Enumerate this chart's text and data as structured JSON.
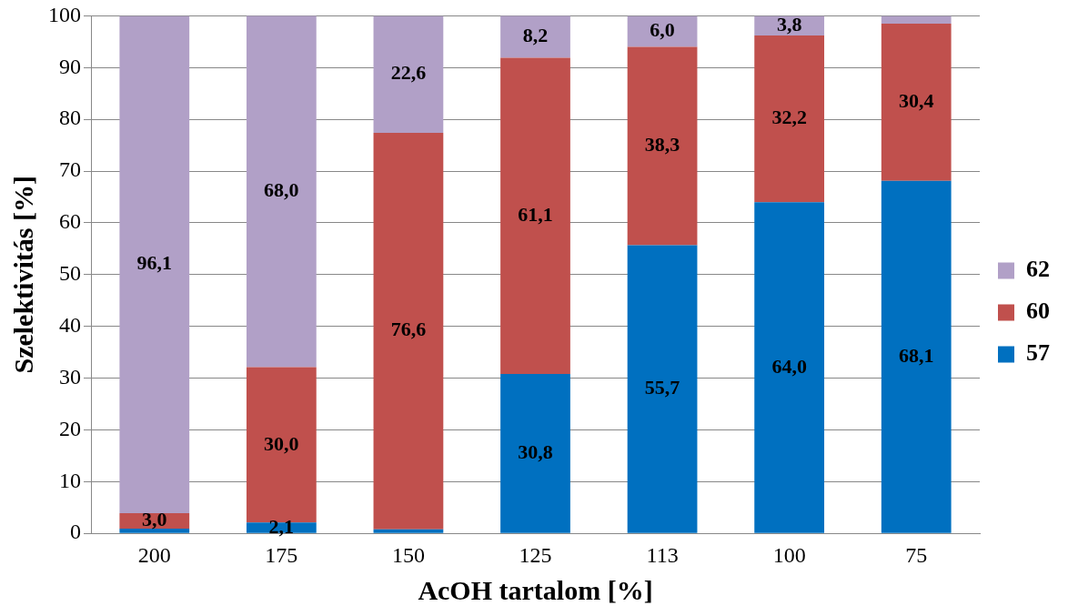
{
  "chart_data": {
    "type": "bar",
    "stacked": true,
    "xlabel": "AcOH tartalom [%]",
    "ylabel": "Szelektivitás [%]",
    "categories": [
      "200",
      "175",
      "150",
      "125",
      "113",
      "100",
      "75"
    ],
    "series": [
      {
        "name": "57",
        "color": "#0070c0",
        "values": [
          0.9,
          2.1,
          0.8,
          30.8,
          55.7,
          64.0,
          68.1
        ],
        "value_labels": [
          null,
          "2,1",
          null,
          "30,8",
          "55,7",
          "64,0",
          "68,1"
        ]
      },
      {
        "name": "60",
        "color": "#c0504d",
        "values": [
          3.0,
          30.0,
          76.6,
          61.1,
          38.3,
          32.2,
          30.4
        ],
        "value_labels": [
          "3,0",
          "30,0",
          "76,6",
          "61,1",
          "38,3",
          "32,2",
          "30,4"
        ]
      },
      {
        "name": "62",
        "color": "#b1a0c7",
        "values": [
          96.1,
          68.0,
          22.6,
          8.2,
          6.0,
          3.8,
          1.5
        ],
        "value_labels": [
          "96,1",
          "68,0",
          "22,6",
          "8,2",
          "6,0",
          "3,8",
          null
        ]
      }
    ],
    "ylim": [
      0,
      100
    ],
    "yticks": [
      0,
      10,
      20,
      30,
      40,
      50,
      60,
      70,
      80,
      90,
      100
    ],
    "grid": "y",
    "legend": "right"
  }
}
